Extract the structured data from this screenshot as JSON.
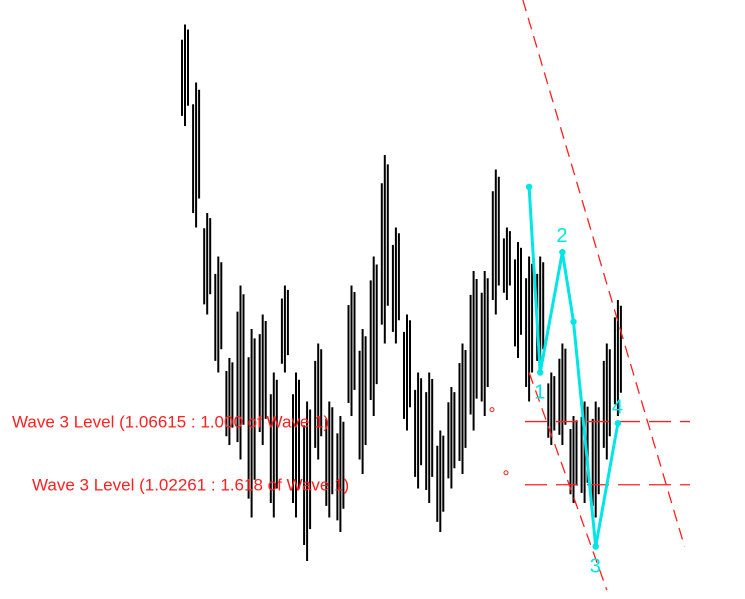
{
  "colors": {
    "background": "#ffffff",
    "bars": "#000000",
    "wave": "#00e5e5",
    "levels": "#ff2020"
  },
  "chart_data": {
    "type": "bar",
    "subtype": "price-range-bars",
    "title": "",
    "xlabel": "",
    "ylabel": "",
    "grid": false,
    "legend": "none",
    "bar_ranges": [
      [
        1.27,
        1.34
      ],
      [
        1.2,
        1.3
      ],
      [
        1.14,
        1.21
      ],
      [
        1.1,
        1.18
      ],
      [
        1.05,
        1.11
      ],
      [
        1.04,
        1.16
      ],
      [
        1.0,
        1.13
      ],
      [
        1.05,
        1.14
      ],
      [
        1.0,
        1.1
      ],
      [
        1.1,
        1.16
      ],
      [
        1.0,
        1.1
      ],
      [
        0.97,
        1.08
      ],
      [
        1.04,
        1.12
      ],
      [
        1.0,
        1.08
      ],
      [
        0.99,
        1.07
      ],
      [
        1.07,
        1.16
      ],
      [
        1.03,
        1.13
      ],
      [
        1.07,
        1.18
      ],
      [
        1.12,
        1.25
      ],
      [
        1.12,
        1.2
      ],
      [
        1.06,
        1.14
      ],
      [
        1.02,
        1.1
      ],
      [
        1.01,
        1.1
      ],
      [
        0.99,
        1.06
      ],
      [
        1.02,
        1.09
      ],
      [
        1.03,
        1.12
      ],
      [
        1.06,
        1.17
      ],
      [
        1.07,
        1.17
      ],
      [
        1.14,
        1.24
      ],
      [
        1.15,
        1.2
      ],
      [
        1.11,
        1.19
      ],
      [
        1.08,
        1.18
      ],
      [
        1.1,
        1.18
      ],
      [
        1.05,
        1.1
      ],
      [
        1.05,
        1.12
      ],
      [
        1.01,
        1.07
      ],
      [
        1.01,
        1.08
      ],
      [
        1.0,
        1.08
      ],
      [
        1.04,
        1.12
      ],
      [
        1.07,
        1.15
      ]
    ],
    "wave_points": [
      {
        "label": "",
        "bar": 31,
        "y": 1.228
      },
      {
        "label": "1",
        "bar": 32,
        "y": 1.1
      },
      {
        "label": "2",
        "bar": 34,
        "y": 1.183
      },
      {
        "label": "",
        "bar": 35,
        "y": 1.135
      },
      {
        "label": "3",
        "bar": 37,
        "y": 0.98
      },
      {
        "label": "4",
        "bar": 39,
        "y": 1.065
      }
    ],
    "channel_lines": [
      {
        "style": "dashed",
        "role": "upper",
        "from": {
          "bar": 28,
          "y": 1.42
        },
        "to": {
          "bar": 45,
          "y": 0.98
        }
      },
      {
        "style": "dashed",
        "role": "lower",
        "from": {
          "bar": 31,
          "y": 1.1
        },
        "to": {
          "bar": 38,
          "y": 0.95
        }
      }
    ],
    "levels": [
      {
        "label": "Wave 3 Level (1.06615 : 1.000 of Wave 1)",
        "value": 1.06615
      },
      {
        "label": "Wave 3 Level (1.02261 : 1.618 of Wave 1)",
        "value": 1.02261
      }
    ]
  }
}
